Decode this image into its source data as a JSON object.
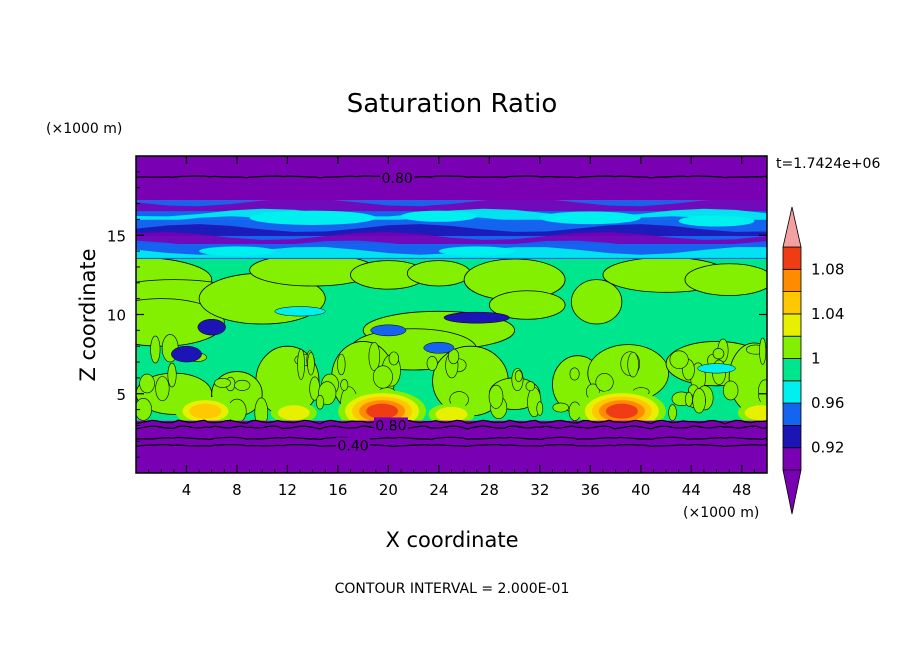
{
  "chart_data": {
    "type": "heatmap",
    "title": "Saturation Ratio",
    "xlabel": "X coordinate",
    "ylabel": "Z coordinate",
    "x_unit": "(×1000 m)",
    "y_unit": "(×1000 m)",
    "xlim": [
      0,
      50
    ],
    "ylim": [
      0,
      20
    ],
    "x_ticks": [
      4,
      8,
      12,
      16,
      20,
      24,
      28,
      32,
      36,
      40,
      44,
      48
    ],
    "y_ticks": [
      5,
      10,
      15
    ],
    "time_label": "t=1.7424e+06",
    "footer": "CONTOUR INTERVAL = 2.000E-01",
    "colorbar": {
      "levels": [
        0.9,
        0.92,
        0.94,
        0.96,
        0.98,
        1.0,
        1.02,
        1.04,
        1.06,
        1.08,
        1.1
      ],
      "tick_labels": [
        "0.92",
        "0.96",
        "1",
        "1.04",
        "1.08"
      ],
      "tick_values": [
        0.92,
        0.96,
        1.0,
        1.04,
        1.08
      ],
      "colors": [
        "#7a00b4",
        "#1c14b4",
        "#1464f0",
        "#00f0f0",
        "#00e68c",
        "#82f000",
        "#e6f000",
        "#ffc800",
        "#ff8c00",
        "#f03c14"
      ],
      "over_color": "#f5a0a0",
      "under_color": "#7a00b4",
      "extend": "both"
    },
    "contour_labels": [
      {
        "text": "0.80",
        "x": 20.7,
        "z": 18.6
      },
      {
        "text": "0.80",
        "x": 20.2,
        "z": 3.0
      },
      {
        "text": "0.40",
        "x": 17.2,
        "z": 1.75
      }
    ],
    "regions": {
      "bottom_dry_layer": {
        "z": [
          0,
          3.3
        ],
        "value": 0.85
      },
      "cloud_layer": {
        "z": [
          3.3,
          13.5
        ],
        "background_value": 0.99,
        "dominant_value": 1.01
      },
      "moist_peaks": [
        {
          "x": 5.5,
          "z": 3.9,
          "value": 1.05
        },
        {
          "x": 19.5,
          "z": 3.9,
          "value": 1.09
        },
        {
          "x": 38.5,
          "z": 3.9,
          "value": 1.09
        },
        {
          "x": 12.5,
          "z": 3.8,
          "value": 1.03
        },
        {
          "x": 25,
          "z": 3.7,
          "value": 1.03
        },
        {
          "x": 49.5,
          "z": 3.8,
          "value": 1.03
        }
      ],
      "upper_band": {
        "z": [
          13.5,
          17.2
        ],
        "value": 0.95
      },
      "top_dry_layer": {
        "z": [
          17.2,
          20
        ],
        "value": 0.85
      }
    }
  }
}
